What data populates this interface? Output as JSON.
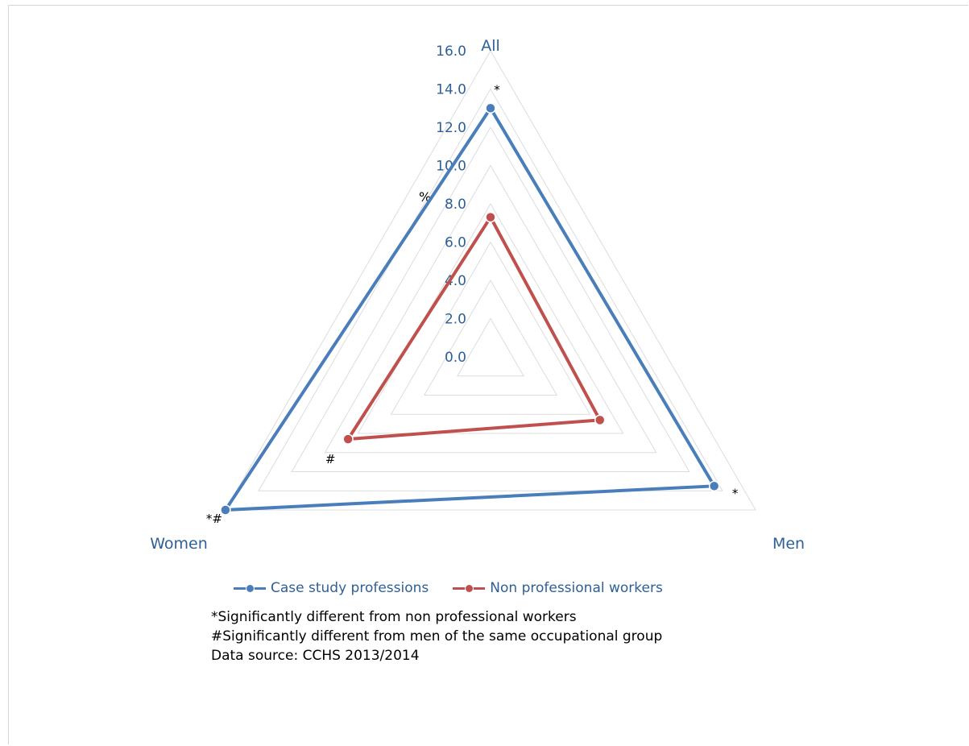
{
  "chart_data": {
    "type": "radar",
    "categories": [
      "All",
      "Men",
      "Women"
    ],
    "unit_label": "%",
    "ticks": [
      "0.0",
      "2.0",
      "4.0",
      "6.0",
      "8.0",
      "10.0",
      "12.0",
      "14.0",
      "16.0"
    ],
    "rlim": [
      0,
      16
    ],
    "series": [
      {
        "name": "Case study professions",
        "color": "#4a7ebb",
        "values": [
          13.0,
          13.5,
          16.0
        ],
        "markers": [
          "*",
          "*",
          "*#"
        ]
      },
      {
        "name": "Non professional workers",
        "color": "#c0504d",
        "values": [
          7.3,
          6.6,
          8.6
        ],
        "markers": [
          "",
          "",
          "#"
        ]
      }
    ],
    "legend_position": "bottom"
  },
  "notes": [
    "*Significantly different from non professional workers",
    "#Significantly different from men of the same occupational group",
    "Data source: CCHS 2013/2014"
  ]
}
